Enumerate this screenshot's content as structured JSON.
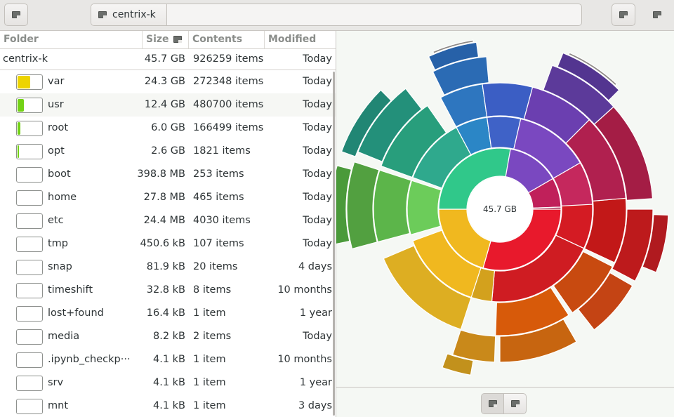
{
  "header": {
    "path_label": "centrix-k",
    "icons": [
      "back-icon",
      "folder-icon",
      "menu-icon",
      "window-menu-icon"
    ]
  },
  "columns": {
    "folder": "Folder",
    "size": "Size",
    "contents": "Contents",
    "modified": "Modified"
  },
  "root": {
    "name": "centrix-k",
    "size": "45.7 GB",
    "contents": "926259 items",
    "modified": "Today"
  },
  "rows": [
    {
      "name": "var",
      "size": "24.3 GB",
      "contents": "272348 items",
      "modified": "Today",
      "fraction": 0.53,
      "color": "#edd400"
    },
    {
      "name": "usr",
      "size": "12.4 GB",
      "contents": "480700 items",
      "modified": "Today",
      "fraction": 0.27,
      "color": "#73d216"
    },
    {
      "name": "root",
      "size": "6.0 GB",
      "contents": "166499 items",
      "modified": "Today",
      "fraction": 0.13,
      "color": "#73d216"
    },
    {
      "name": "opt",
      "size": "2.6 GB",
      "contents": "1821 items",
      "modified": "Today",
      "fraction": 0.06,
      "color": "#73d216"
    },
    {
      "name": "boot",
      "size": "398.8 MB",
      "contents": "253 items",
      "modified": "Today",
      "fraction": 0,
      "color": "#73d216"
    },
    {
      "name": "home",
      "size": "27.8 MB",
      "contents": "465 items",
      "modified": "Today",
      "fraction": 0,
      "color": "#73d216"
    },
    {
      "name": "etc",
      "size": "24.4 MB",
      "contents": "4030 items",
      "modified": "Today",
      "fraction": 0,
      "color": "#73d216"
    },
    {
      "name": "tmp",
      "size": "450.6 kB",
      "contents": "107 items",
      "modified": "Today",
      "fraction": 0,
      "color": "#73d216"
    },
    {
      "name": "snap",
      "size": "81.9 kB",
      "contents": "20 items",
      "modified": "4 days",
      "fraction": 0,
      "color": "#73d216"
    },
    {
      "name": "timeshift",
      "size": "32.8 kB",
      "contents": "8 items",
      "modified": "10 months",
      "fraction": 0,
      "color": "#73d216"
    },
    {
      "name": "lost+found",
      "size": "16.4 kB",
      "contents": "1 item",
      "modified": "1 year",
      "fraction": 0,
      "color": "#73d216"
    },
    {
      "name": "media",
      "size": "8.2 kB",
      "contents": "2 items",
      "modified": "Today",
      "fraction": 0,
      "color": "#73d216"
    },
    {
      "name": ".ipynb_checkp···",
      "size": "4.1 kB",
      "contents": "1 item",
      "modified": "10 months",
      "fraction": 0,
      "color": "#73d216"
    },
    {
      "name": "srv",
      "size": "4.1 kB",
      "contents": "1 item",
      "modified": "1 year",
      "fraction": 0,
      "color": "#73d216"
    },
    {
      "name": "mnt",
      "size": "4.1 kB",
      "contents": "1 item",
      "modified": "3 days",
      "fraction": 0,
      "color": "#73d216"
    }
  ],
  "chart": {
    "center_label": "45.7 GB",
    "view_buttons": [
      "rings-chart-icon",
      "treemap-chart-icon"
    ]
  }
}
